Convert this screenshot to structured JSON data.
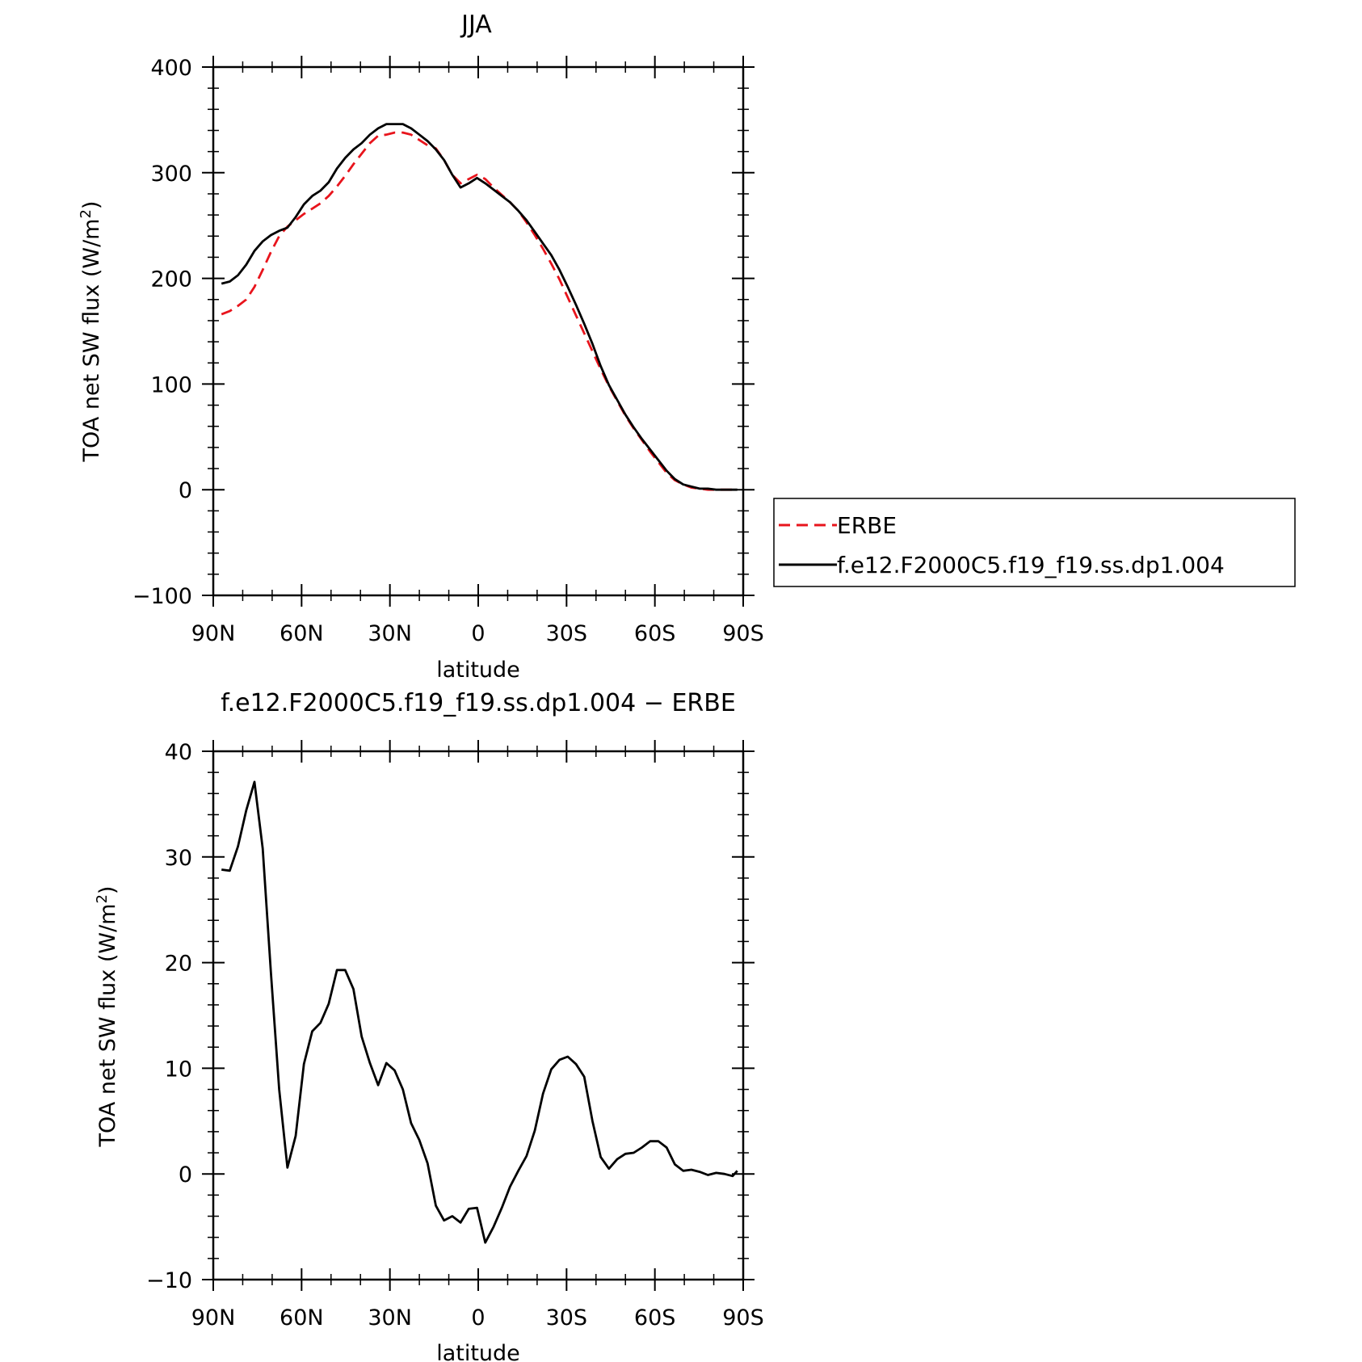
{
  "colors": {
    "model": "#000000",
    "erbe": "#e8141c"
  },
  "chart_data": [
    {
      "type": "line",
      "title": "JJA",
      "xlabel": "latitude",
      "ylabel": "TOA net SW flux (W/m²)",
      "ylabel_prefix": "TOA net SW flux (W/m",
      "ylabel_sup": "2",
      "ylabel_suffix": ")",
      "xlim": [
        90,
        -90
      ],
      "ylim": [
        -100,
        400
      ],
      "xticks": [
        90,
        60,
        30,
        0,
        -30,
        -60,
        -90
      ],
      "xtick_labels": [
        "90N",
        "60N",
        "30N",
        "0",
        "30S",
        "60S",
        "90S"
      ],
      "yticks": [
        -100,
        0,
        100,
        200,
        300,
        400
      ],
      "ytick_labels": [
        "−100",
        "0",
        "100",
        "200",
        "300",
        "400"
      ],
      "legend_position": "right",
      "series": [
        {
          "name": "ERBE",
          "style": "dashed",
          "x": [
            87.2,
            84.4,
            81.6,
            78.8,
            76,
            73.2,
            70.4,
            67.6,
            64.8,
            62,
            59.2,
            56.4,
            53.6,
            50.8,
            48,
            45.2,
            42.4,
            39.6,
            36.8,
            34,
            31.2,
            28.4,
            25.6,
            22.8,
            20,
            17.2,
            14.4,
            11.6,
            8.8,
            6,
            3.2,
            0.4,
            -2.4,
            -5.2,
            -8,
            -10.8,
            -13.6,
            -16.4,
            -19.2,
            -22,
            -24.8,
            -27.6,
            -30.4,
            -33.2,
            -36,
            -38.8,
            -41.6,
            -44.4,
            -47.2,
            -50,
            -52.8,
            -55.6,
            -58.4,
            -61.2,
            -64,
            -66.8,
            -69.6,
            -72.4,
            -75.2,
            -78,
            -80.8,
            -83.6,
            -86.4,
            -88
          ],
          "y": [
            166,
            169,
            174,
            180,
            192,
            208,
            225,
            240,
            249,
            255,
            261,
            266,
            271,
            278,
            287,
            297,
            308,
            318,
            328,
            335,
            336,
            338,
            338,
            336,
            331,
            326,
            323,
            312,
            298,
            290,
            294,
            298,
            294,
            286,
            279,
            272,
            264,
            253,
            241,
            228,
            214,
            199,
            182,
            165,
            148,
            131,
            114,
            98,
            84,
            70,
            58,
            47,
            36,
            26,
            16,
            9,
            5,
            2,
            1,
            0,
            0,
            0,
            0,
            0
          ]
        },
        {
          "name": "f.e12.F2000C5.f19_f19.ss.dp1.004",
          "style": "solid",
          "x": [
            87.2,
            84.4,
            81.6,
            78.8,
            76,
            73.2,
            70.4,
            67.6,
            64.8,
            62,
            59.2,
            56.4,
            53.6,
            50.8,
            48,
            45.2,
            42.4,
            39.6,
            36.8,
            34,
            31.2,
            28.4,
            25.6,
            22.8,
            20,
            17.2,
            14.4,
            11.6,
            8.8,
            6,
            3.2,
            0.4,
            -2.4,
            -5.2,
            -8,
            -10.8,
            -13.6,
            -16.4,
            -19.2,
            -22,
            -24.8,
            -27.6,
            -30.4,
            -33.2,
            -36,
            -38.8,
            -41.6,
            -44.4,
            -47.2,
            -50,
            -52.8,
            -55.6,
            -58.4,
            -61.2,
            -64,
            -66.8,
            -69.6,
            -72.4,
            -75.2,
            -78,
            -80.8,
            -83.6,
            -86.4,
            -88
          ],
          "y": [
            195,
            197,
            203,
            213,
            226,
            235,
            241,
            245,
            248,
            258,
            270,
            278,
            283,
            291,
            304,
            314,
            322,
            328,
            336,
            342,
            346,
            346,
            346,
            342,
            336,
            330,
            322,
            312,
            298,
            286,
            290,
            295,
            290,
            284,
            278,
            272,
            264,
            255,
            244,
            233,
            222,
            208,
            192,
            175,
            157,
            138,
            117,
            99,
            85,
            71,
            59,
            48,
            38,
            28,
            18,
            10,
            5,
            3,
            1,
            1,
            0,
            0,
            0,
            0
          ]
        }
      ]
    },
    {
      "type": "line",
      "title": "f.e12.F2000C5.f19_f19.ss.dp1.004 − ERBE",
      "xlabel": "latitude",
      "ylabel": "TOA net SW flux (W/m²)",
      "ylabel_prefix": "TOA net SW flux (W/m",
      "ylabel_sup": "2",
      "ylabel_suffix": ")",
      "xlim": [
        90,
        -90
      ],
      "ylim": [
        -10,
        40
      ],
      "xticks": [
        90,
        60,
        30,
        0,
        -30,
        -60,
        -90
      ],
      "xtick_labels": [
        "90N",
        "60N",
        "30N",
        "0",
        "30S",
        "60S",
        "90S"
      ],
      "yticks": [
        -10,
        0,
        10,
        20,
        30,
        40
      ],
      "ytick_labels": [
        "−10",
        "0",
        "10",
        "20",
        "30",
        "40"
      ],
      "series": [
        {
          "style": "solid",
          "x": [
            87.2,
            84.4,
            81.6,
            78.8,
            76,
            73.2,
            70.4,
            67.6,
            64.8,
            62,
            59.2,
            56.4,
            53.6,
            50.8,
            48,
            45.2,
            42.4,
            39.6,
            36.8,
            34,
            31.2,
            28.4,
            25.6,
            22.8,
            20,
            17.2,
            14.4,
            11.6,
            8.8,
            6,
            3.2,
            0.4,
            -2.4,
            -5.2,
            -8,
            -10.8,
            -13.6,
            -16.4,
            -19.2,
            -22,
            -24.8,
            -27.6,
            -30.4,
            -33.2,
            -36,
            -38.8,
            -41.6,
            -44.4,
            -47.2,
            -50,
            -52.8,
            -55.6,
            -58.4,
            -61.2,
            -64,
            -66.8,
            -69.6,
            -72.4,
            -75.2,
            -78,
            -80.8,
            -83.6,
            -86.4,
            -88
          ],
          "y": [
            28.8,
            28.7,
            31,
            34.4,
            37.1,
            30.8,
            19,
            8,
            0.6,
            3.6,
            10.4,
            13.5,
            14.3,
            16.1,
            19.3,
            19.3,
            17.5,
            13,
            10.5,
            8.4,
            10.5,
            9.8,
            8,
            4.8,
            3.2,
            1,
            -3,
            -4.4,
            -4,
            -4.6,
            -3.3,
            -3.2,
            -6.5,
            -5,
            -3.2,
            -1.2,
            0.3,
            1.7,
            4.1,
            7.6,
            9.9,
            10.8,
            11.1,
            10.4,
            9.2,
            5,
            1.6,
            0.5,
            1.4,
            1.9,
            2,
            2.5,
            3.1,
            3.1,
            2.5,
            0.9,
            0.3,
            0.4,
            0.2,
            -0.1,
            0.1,
            0,
            -0.2,
            0.3
          ]
        }
      ]
    }
  ]
}
